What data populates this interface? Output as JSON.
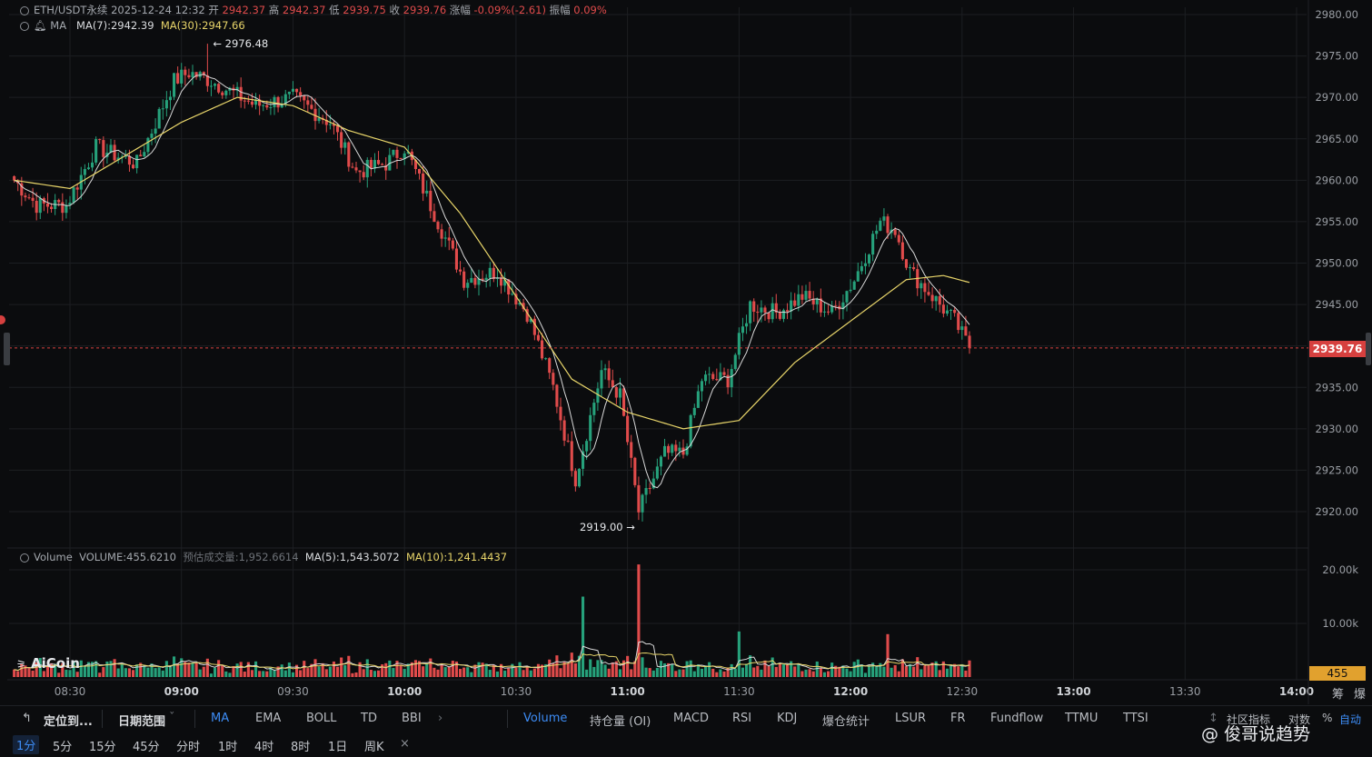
{
  "header": {
    "symbol": "ETH/USDT永续",
    "datetime": "2025-12-24 12:32",
    "open_label": "开",
    "open": "2942.37",
    "high_label": "高",
    "high": "2942.37",
    "low_label": "低",
    "low": "2939.75",
    "close_label": "收",
    "close": "2939.76",
    "change_label": "涨幅",
    "change": "-0.09%(-2.61)",
    "amp_label": "振幅",
    "amp": "0.09%"
  },
  "ma_legend": {
    "name": "MA",
    "ma7": "MA(7):2942.39",
    "ma30": "MA(30):2947.66"
  },
  "volume_legend": {
    "name": "Volume",
    "volume": "VOLUME:455.6210",
    "estimate": "预估成交量:1,952.6614",
    "ma5": "MA(5):1,543.5072",
    "ma10": "MA(10):1,241.4437"
  },
  "annotations": {
    "high_label": "← 2976.48",
    "low_label": "2919.00 →"
  },
  "price_tag": "2939.76",
  "volume_tag": "455",
  "logo": "AiCoin",
  "watermark": "@ 俊哥说趋势",
  "toolbar": {
    "locate": "定位到...",
    "date_range": "日期范围",
    "indicators": [
      "MA",
      "EMA",
      "BOLL",
      "TD",
      "BBI"
    ],
    "sub_indicators": [
      "Volume",
      "持仓量 (OI)",
      "MACD",
      "RSI",
      "KDJ",
      "爆仓统计",
      "LSUR",
      "FR",
      "Fundflow",
      "TTMU",
      "TTSI"
    ],
    "community": "社区指标",
    "right_opts": [
      "对数",
      "%",
      "自动"
    ],
    "side_opts": [
      "筹",
      "爆"
    ]
  },
  "timeframes": [
    "1分",
    "5分",
    "15分",
    "45分",
    "分时",
    "1时",
    "4时",
    "8时",
    "1日",
    "周K"
  ],
  "colors": {
    "up": "#26a17b",
    "down": "#e04b4b",
    "ma7": "#d8d8d8",
    "ma30": "#e8d56a",
    "vol_ma10": "#e8d56a",
    "grid": "#1c1e22"
  },
  "chart_data": {
    "type": "candlestick",
    "price_axis": {
      "ticks": [
        2920,
        2925,
        2930,
        2935,
        2940,
        2945,
        2950,
        2955,
        2960,
        2965,
        2970,
        2975,
        2980
      ],
      "unit": "USDT"
    },
    "volume_axis": {
      "ticks": [
        "10.00k",
        "20.00k"
      ]
    },
    "time_axis": {
      "labels": [
        "08:30",
        "09:00",
        "09:30",
        "10:00",
        "10:30",
        "11:00",
        "11:30",
        "12:00",
        "12:30",
        "13:00",
        "13:30",
        "14:00"
      ]
    },
    "keypoints": [
      {
        "time": "08:15",
        "price": 2960
      },
      {
        "time": "08:21",
        "price": 2957
      },
      {
        "time": "08:29",
        "price": 2957
      },
      {
        "time": "08:37",
        "price": 2964
      },
      {
        "time": "08:48",
        "price": 2962
      },
      {
        "time": "08:58",
        "price": 2972
      },
      {
        "time": "09:02",
        "price": 2973
      },
      {
        "time": "09:08",
        "price": 2972
      },
      {
        "time": "09:20",
        "price": 2969
      },
      {
        "time": "09:30",
        "price": 2970
      },
      {
        "time": "09:40",
        "price": 2967
      },
      {
        "time": "09:47",
        "price": 2961
      },
      {
        "time": "09:55",
        "price": 2962
      },
      {
        "time": "10:00",
        "price": 2964
      },
      {
        "time": "10:08",
        "price": 2956
      },
      {
        "time": "10:16",
        "price": 2948
      },
      {
        "time": "10:25",
        "price": 2949
      },
      {
        "time": "10:33",
        "price": 2944
      },
      {
        "time": "10:40",
        "price": 2935
      },
      {
        "time": "10:46",
        "price": 2924
      },
      {
        "time": "10:53",
        "price": 2937
      },
      {
        "time": "10:58",
        "price": 2934
      },
      {
        "time": "11:03",
        "price": 2920
      },
      {
        "time": "11:10",
        "price": 2927
      },
      {
        "time": "11:15",
        "price": 2927
      },
      {
        "time": "11:20",
        "price": 2936
      },
      {
        "time": "11:27",
        "price": 2936
      },
      {
        "time": "11:33",
        "price": 2945
      },
      {
        "time": "11:40",
        "price": 2944
      },
      {
        "time": "11:47",
        "price": 2946
      },
      {
        "time": "11:55",
        "price": 2944
      },
      {
        "time": "12:01",
        "price": 2948
      },
      {
        "time": "12:08",
        "price": 2955
      },
      {
        "time": "12:12",
        "price": 2954
      },
      {
        "time": "12:16",
        "price": 2949
      },
      {
        "time": "12:22",
        "price": 2946
      },
      {
        "time": "12:28",
        "price": 2943
      },
      {
        "time": "12:32",
        "price": 2939.76
      }
    ],
    "ma30_keypoints": [
      {
        "time": "08:15",
        "price": 2960
      },
      {
        "time": "08:30",
        "price": 2959
      },
      {
        "time": "08:45",
        "price": 2963
      },
      {
        "time": "09:00",
        "price": 2967
      },
      {
        "time": "09:15",
        "price": 2970
      },
      {
        "time": "09:30",
        "price": 2969
      },
      {
        "time": "09:45",
        "price": 2966
      },
      {
        "time": "10:00",
        "price": 2964
      },
      {
        "time": "10:15",
        "price": 2956
      },
      {
        "time": "10:30",
        "price": 2946
      },
      {
        "time": "10:45",
        "price": 2936
      },
      {
        "time": "11:00",
        "price": 2932
      },
      {
        "time": "11:15",
        "price": 2930
      },
      {
        "time": "11:30",
        "price": 2931
      },
      {
        "time": "11:45",
        "price": 2938
      },
      {
        "time": "12:00",
        "price": 2943
      },
      {
        "time": "12:15",
        "price": 2948
      },
      {
        "time": "12:25",
        "price": 2948.5
      },
      {
        "time": "12:32",
        "price": 2947.66
      }
    ],
    "high": {
      "time": "09:07",
      "price": 2976.48
    },
    "low": {
      "time": "11:03",
      "price": 2919.0
    },
    "last_price": 2939.76,
    "volume_spikes": [
      {
        "time": "10:48",
        "value": 15000
      },
      {
        "time": "11:03",
        "value": 21000
      },
      {
        "time": "11:30",
        "value": 8500
      },
      {
        "time": "12:10",
        "value": 8000
      }
    ]
  }
}
